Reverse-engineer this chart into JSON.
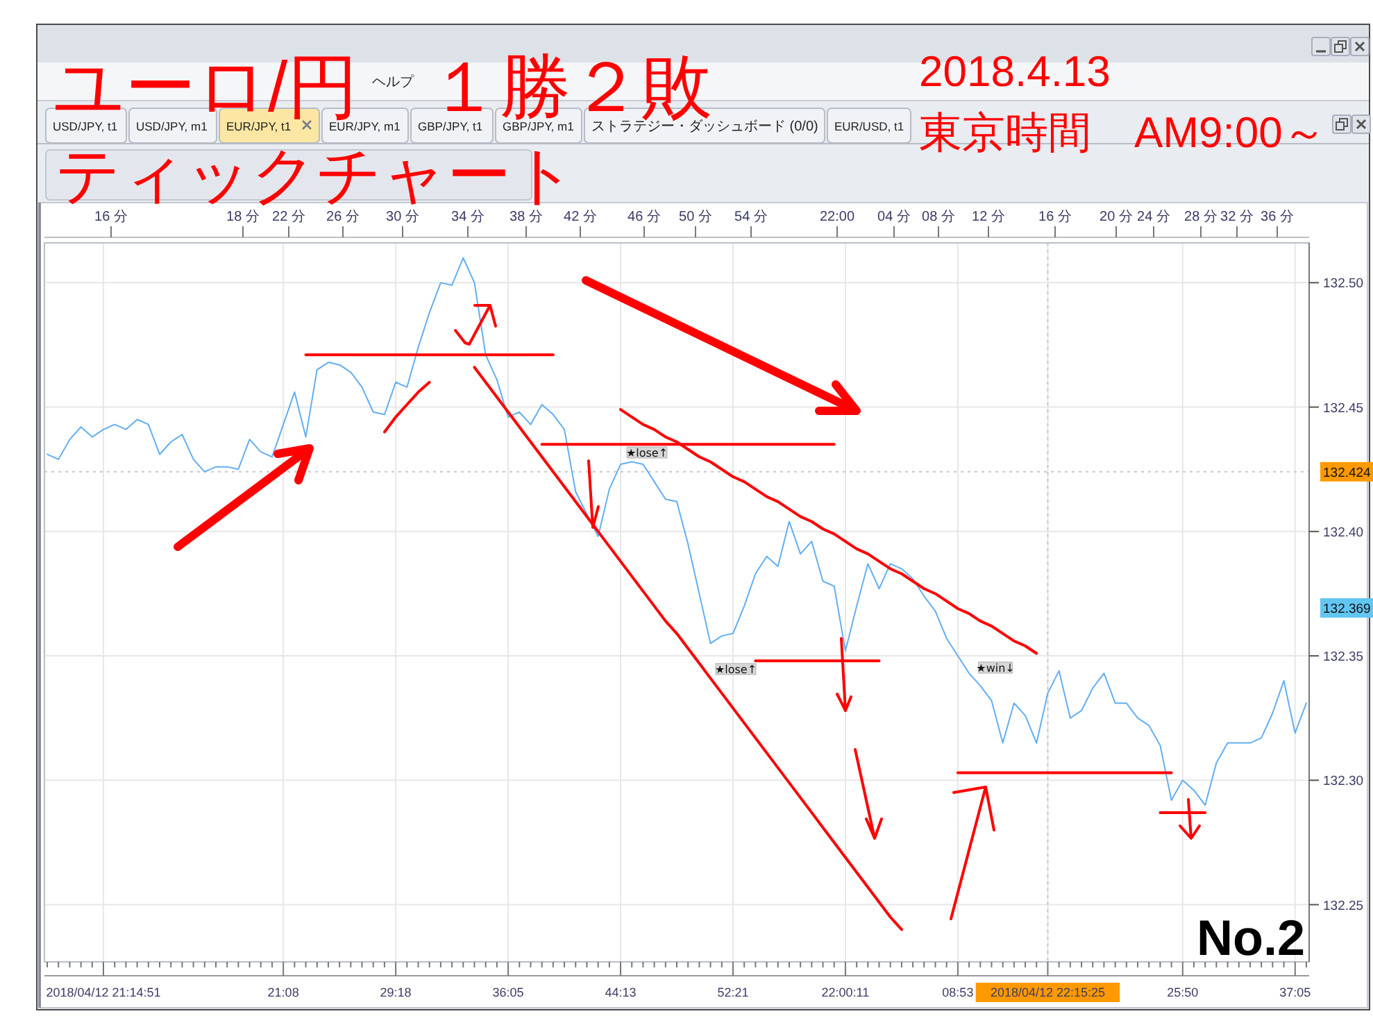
{
  "chart_data": {
    "type": "line",
    "title": "ユーロ/円　１勝２敗",
    "subtitle": "ティックチャート",
    "categories": [
      null,
      null,
      null,
      null,
      null,
      "2018/04/12 21:14:51",
      null,
      null,
      null,
      null,
      null,
      null,
      null,
      null,
      null,
      null,
      null,
      null,
      null,
      null,
      null,
      "21:08",
      null,
      null,
      null,
      null,
      null,
      null,
      null,
      null,
      null,
      "29:18",
      null,
      null,
      null,
      null,
      null,
      null,
      null,
      null,
      null,
      "36:05",
      null,
      null,
      null,
      null,
      null,
      null,
      null,
      null,
      null,
      "44:13",
      null,
      null,
      null,
      null,
      null,
      null,
      null,
      null,
      null,
      "52:21",
      null,
      null,
      null,
      null,
      null,
      null,
      null,
      null,
      null,
      "22:00:11",
      null,
      null,
      null,
      null,
      null,
      null,
      null,
      null,
      null,
      "08:53",
      null,
      null,
      null,
      null,
      null,
      null,
      null,
      "2018/04/12 22:15:25",
      null,
      null,
      null,
      null,
      null,
      null,
      null,
      null,
      null,
      null,
      null,
      "25:50",
      null,
      null,
      null,
      null,
      null,
      null,
      null,
      null,
      null,
      "37:05",
      null
    ],
    "ylim": [
      132.227,
      132.516
    ],
    "yticks": [
      132.25,
      {
        "value": 132.3,
        "label": "132.30"
      },
      132.35,
      {
        "value": 132.4,
        "label": "132.40"
      },
      132.45,
      {
        "value": 132.5,
        "label": "132.50"
      }
    ],
    "grid": true,
    "series": [
      {
        "color": "#62aef2",
        "values": [
          132.431,
          132.429,
          132.437,
          132.442,
          132.438,
          132.441,
          132.443,
          132.441,
          132.445,
          132.443,
          132.431,
          132.436,
          132.439,
          132.429,
          132.424,
          132.426,
          132.426,
          132.425,
          132.437,
          132.432,
          132.43,
          132.443,
          132.456,
          132.438,
          132.465,
          132.468,
          132.467,
          132.464,
          132.458,
          132.448,
          132.447,
          132.46,
          132.458,
          132.474,
          132.488,
          132.5,
          132.499,
          132.51,
          132.5,
          132.471,
          132.461,
          132.446,
          132.448,
          132.443,
          132.451,
          132.447,
          132.441,
          132.416,
          132.407,
          132.398,
          132.417,
          132.427,
          132.428,
          132.427,
          132.42,
          132.413,
          132.412,
          132.395,
          132.375,
          132.355,
          132.358,
          132.359,
          132.37,
          132.383,
          132.39,
          132.386,
          132.404,
          132.391,
          132.396,
          132.38,
          132.378,
          132.352,
          132.37,
          132.387,
          132.377,
          132.387,
          132.385,
          132.381,
          132.374,
          132.368,
          132.357,
          132.35,
          132.343,
          132.338,
          132.332,
          132.315,
          132.331,
          132.326,
          132.315,
          132.335,
          132.344,
          132.325,
          132.328,
          132.337,
          132.343,
          132.331,
          132.331,
          132.325,
          132.322,
          132.314,
          132.292,
          132.3,
          132.296,
          132.29,
          132.307,
          132.315,
          132.315,
          132.315,
          132.317,
          132.327,
          132.34,
          132.319,
          132.331
        ]
      },
      {
        "color": "#ff0000",
        "values": [
          null,
          null,
          null,
          null,
          null,
          null,
          null,
          null,
          null,
          null,
          null,
          null,
          null,
          null,
          null,
          null,
          null,
          null,
          null,
          null,
          null,
          null,
          null,
          132.471,
          132.471,
          132.471,
          132.471,
          132.471,
          132.471,
          132.471,
          132.471,
          132.471,
          132.471,
          132.471,
          132.471,
          132.471,
          132.471,
          132.471,
          132.471,
          132.471,
          132.471,
          132.471,
          132.471,
          132.471,
          132.471,
          132.471,
          null,
          null,
          null,
          null,
          null,
          null,
          null,
          null,
          null,
          null,
          null,
          null,
          null,
          null,
          null,
          null,
          null,
          null,
          null,
          null,
          null,
          null,
          null,
          null,
          null,
          null,
          null,
          null,
          null,
          null,
          null,
          null,
          null,
          null,
          null,
          null,
          null,
          null,
          null,
          null,
          null,
          null,
          null,
          null,
          null,
          null,
          null,
          null,
          null,
          null,
          null,
          null,
          null,
          null,
          null,
          null,
          null,
          null,
          null,
          null,
          null,
          null,
          null,
          null,
          null,
          null,
          null
        ]
      },
      {
        "color": "#ff0000",
        "values": [
          null,
          null,
          null,
          null,
          null,
          null,
          null,
          null,
          null,
          null,
          null,
          null,
          null,
          null,
          null,
          null,
          null,
          null,
          null,
          null,
          null,
          null,
          null,
          null,
          null,
          null,
          null,
          null,
          null,
          null,
          132.44,
          132.446,
          132.451,
          132.456,
          132.46,
          null,
          null,
          null,
          null,
          null,
          null,
          null,
          null,
          null,
          null,
          null,
          null,
          null,
          null,
          null,
          null,
          null,
          null,
          null,
          null,
          null,
          null,
          null,
          null,
          null,
          null,
          null,
          null,
          null,
          null,
          null,
          null,
          null,
          null,
          null,
          null,
          null,
          null,
          null,
          null,
          null,
          null,
          null,
          null,
          null,
          null,
          null,
          null,
          null,
          null,
          null,
          null,
          null,
          null,
          null,
          null,
          null,
          null,
          null,
          null,
          null,
          null,
          null,
          null,
          null,
          null,
          null,
          null,
          null,
          null,
          null,
          null,
          null,
          null,
          null,
          null,
          null,
          null
        ]
      },
      {
        "color": "#ff0000",
        "values": [
          null,
          null,
          null,
          null,
          null,
          null,
          null,
          null,
          null,
          null,
          null,
          null,
          null,
          null,
          null,
          null,
          null,
          null,
          null,
          null,
          null,
          null,
          null,
          null,
          null,
          null,
          null,
          null,
          null,
          null,
          null,
          null,
          null,
          null,
          null,
          null,
          null,
          null,
          132.466,
          132.46,
          132.454,
          132.448,
          132.442,
          132.436,
          132.43,
          132.424,
          132.418,
          132.412,
          132.406,
          132.4,
          132.394,
          132.388,
          132.382,
          132.376,
          132.37,
          132.364,
          132.359,
          132.353,
          132.347,
          132.341,
          132.335,
          132.329,
          132.323,
          132.317,
          132.311,
          132.305,
          132.299,
          132.293,
          132.287,
          132.281,
          132.275,
          132.269,
          132.263,
          132.257,
          132.251,
          132.245,
          132.24,
          null,
          null,
          null,
          null,
          null,
          null,
          null,
          null,
          null,
          null,
          null,
          null,
          null,
          null,
          null,
          null,
          null,
          null,
          null,
          null,
          null,
          null,
          null,
          null,
          null,
          null,
          null,
          null,
          null,
          null,
          null,
          null,
          null,
          null,
          null,
          null
        ]
      },
      {
        "color": "#ff0000",
        "values": [
          null,
          null,
          null,
          null,
          null,
          null,
          null,
          null,
          null,
          null,
          null,
          null,
          null,
          null,
          null,
          null,
          null,
          null,
          null,
          null,
          null,
          null,
          null,
          null,
          null,
          null,
          null,
          null,
          null,
          null,
          null,
          null,
          null,
          null,
          null,
          null,
          null,
          null,
          null,
          null,
          null,
          null,
          null,
          null,
          132.435,
          132.435,
          132.435,
          132.435,
          132.435,
          132.435,
          132.435,
          132.435,
          132.435,
          132.435,
          132.435,
          132.435,
          132.435,
          132.435,
          132.435,
          132.435,
          132.435,
          132.435,
          132.435,
          132.435,
          132.435,
          132.435,
          132.435,
          132.435,
          132.435,
          132.435,
          132.435,
          null,
          null,
          null,
          null,
          null,
          null,
          null,
          null,
          null,
          null,
          null,
          null,
          null,
          null,
          null,
          null,
          null,
          null,
          null,
          null,
          null,
          null,
          null,
          null,
          null,
          null,
          null,
          null,
          null,
          null,
          null,
          null,
          null,
          null,
          null,
          null,
          null,
          null,
          null,
          null,
          null,
          null
        ]
      },
      {
        "color": "#ff0000",
        "values": [
          null,
          null,
          null,
          null,
          null,
          null,
          null,
          null,
          null,
          null,
          null,
          null,
          null,
          null,
          null,
          null,
          null,
          null,
          null,
          null,
          null,
          null,
          null,
          null,
          null,
          null,
          null,
          null,
          null,
          null,
          null,
          null,
          null,
          null,
          null,
          null,
          null,
          null,
          null,
          null,
          null,
          null,
          null,
          null,
          null,
          null,
          null,
          null,
          null,
          null,
          null,
          132.449,
          132.446,
          132.443,
          132.441,
          132.438,
          132.436,
          132.433,
          132.43,
          132.428,
          132.425,
          132.422,
          132.42,
          132.417,
          132.414,
          132.412,
          132.409,
          132.406,
          132.404,
          132.401,
          132.399,
          132.396,
          132.393,
          132.391,
          132.388,
          132.385,
          132.383,
          132.38,
          132.377,
          132.375,
          132.372,
          132.369,
          132.367,
          132.364,
          132.362,
          132.359,
          132.356,
          132.354,
          132.351,
          null,
          null,
          null,
          null,
          null,
          null,
          null,
          null,
          null,
          null,
          null,
          null,
          null,
          null,
          null,
          null,
          null,
          null,
          null,
          null,
          null,
          null,
          null,
          null
        ]
      },
      {
        "color": "#ff0000",
        "values": [
          null,
          null,
          null,
          null,
          null,
          null,
          null,
          null,
          null,
          null,
          null,
          null,
          null,
          null,
          null,
          null,
          null,
          null,
          null,
          null,
          null,
          null,
          null,
          null,
          null,
          null,
          null,
          null,
          null,
          null,
          null,
          null,
          null,
          null,
          null,
          null,
          null,
          null,
          null,
          null,
          null,
          null,
          null,
          null,
          null,
          null,
          null,
          null,
          null,
          null,
          null,
          null,
          null,
          null,
          null,
          null,
          null,
          null,
          null,
          null,
          null,
          null,
          null,
          132.348,
          132.348,
          132.348,
          132.348,
          132.348,
          132.348,
          132.348,
          132.348,
          132.348,
          132.348,
          132.348,
          132.348,
          null,
          null,
          null,
          null,
          null,
          null,
          null,
          null,
          null,
          null,
          null,
          null,
          null,
          null,
          null,
          null,
          null,
          null,
          null,
          null,
          null,
          null,
          null,
          null,
          null,
          null,
          null,
          null,
          null,
          null,
          null,
          null,
          null,
          null,
          null,
          null,
          null,
          null
        ]
      },
      {
        "color": "#ff0000",
        "values": [
          null,
          null,
          null,
          null,
          null,
          null,
          null,
          null,
          null,
          null,
          null,
          null,
          null,
          null,
          null,
          null,
          null,
          null,
          null,
          null,
          null,
          null,
          null,
          null,
          null,
          null,
          null,
          null,
          null,
          null,
          null,
          null,
          null,
          null,
          null,
          null,
          null,
          null,
          null,
          null,
          null,
          null,
          null,
          null,
          null,
          null,
          null,
          null,
          null,
          null,
          null,
          null,
          null,
          null,
          null,
          null,
          null,
          null,
          null,
          null,
          null,
          null,
          null,
          null,
          null,
          null,
          null,
          null,
          null,
          null,
          null,
          null,
          null,
          null,
          null,
          null,
          null,
          null,
          null,
          null,
          null,
          132.303,
          132.303,
          132.303,
          132.303,
          132.303,
          132.303,
          132.303,
          132.303,
          132.303,
          132.303,
          132.303,
          132.303,
          132.303,
          132.303,
          132.303,
          132.303,
          132.303,
          132.303,
          132.303,
          132.303,
          null,
          null,
          null,
          null,
          null,
          null,
          null,
          null,
          null,
          null,
          null,
          null
        ]
      },
      {
        "color": "#ff0000",
        "values": [
          null,
          null,
          null,
          null,
          null,
          null,
          null,
          null,
          null,
          null,
          null,
          null,
          null,
          null,
          null,
          null,
          null,
          null,
          null,
          null,
          null,
          null,
          null,
          null,
          null,
          null,
          null,
          null,
          null,
          null,
          null,
          null,
          null,
          null,
          null,
          null,
          null,
          null,
          null,
          null,
          null,
          null,
          null,
          null,
          null,
          null,
          null,
          null,
          null,
          null,
          null,
          null,
          null,
          null,
          null,
          null,
          null,
          null,
          null,
          null,
          null,
          null,
          null,
          null,
          null,
          null,
          null,
          null,
          null,
          null,
          null,
          null,
          null,
          null,
          null,
          null,
          null,
          null,
          null,
          null,
          null,
          null,
          null,
          null,
          null,
          null,
          null,
          null,
          null,
          null,
          null,
          null,
          null,
          null,
          null,
          null,
          null,
          null,
          null,
          132.287,
          132.287,
          132.287,
          132.287,
          132.287,
          null,
          null,
          null,
          null,
          null,
          null,
          null,
          null,
          null
        ]
      }
    ],
    "ref_lines": [
      {
        "axis": "x",
        "value": "2018/04/12 22:15:25",
        "color": "#c8c8c8",
        "line_style": "dotted"
      },
      {
        "axis": "y",
        "value": 132.424,
        "label": "132.424",
        "color": "#c8c8c8",
        "line_style": "dotted"
      }
    ],
    "annotations": [
      "2018.4.13",
      "東京時間　AM9:00～",
      "No.2",
      "USD/JPY, t1",
      "USD/JPY, m1",
      "EUR/JPY, t1",
      "EUR/JPY, m1",
      "GBP/JPY, t1",
      "GBP/JPY, m1",
      "ストラテジー・ダッシュボード (0/0)",
      "EUR/USD, t1",
      "ヘルプ",
      "★lose↑",
      "★lose↑",
      "★win↓",
      "132.369",
      "16 分",
      "18 分",
      "22 分",
      "26 分",
      "30 分",
      "34 分",
      "38 分",
      "42 分",
      "46 分",
      "50 分",
      "54 分",
      "22:00",
      "04 分",
      "08 分",
      "12 分",
      "16 分",
      "20 分",
      "24 分",
      "28 分",
      "32 分",
      "36 分"
    ]
  }
}
